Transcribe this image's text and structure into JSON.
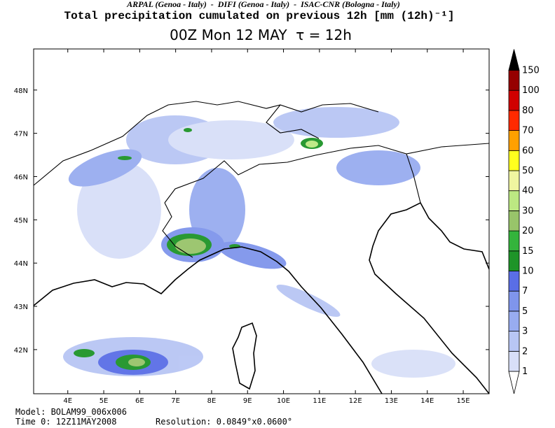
{
  "header": {
    "institutions": "ARPAL (Genoa - Italy)  -  DIFI (Genoa - Italy)  -  ISAC-CNR (Bologna - Italy)",
    "title": "Total precipitation cumulated on previous 12h [mm (12h)⁻¹]",
    "subtitle": "00Z Mon 12 MAY  τ = 12h"
  },
  "map": {
    "lon_lim": [
      3.05,
      15.72
    ],
    "lat_lim": [
      40.98,
      48.95
    ],
    "lon_ticks": [
      {
        "value": 4,
        "label": "4E"
      },
      {
        "value": 5,
        "label": "5E"
      },
      {
        "value": 6,
        "label": "6E"
      },
      {
        "value": 7,
        "label": "7E"
      },
      {
        "value": 8,
        "label": "8E"
      },
      {
        "value": 9,
        "label": "9E"
      },
      {
        "value": 10,
        "label": "10E"
      },
      {
        "value": 11,
        "label": "11E"
      },
      {
        "value": 12,
        "label": "12E"
      },
      {
        "value": 13,
        "label": "13E"
      },
      {
        "value": 14,
        "label": "14E"
      },
      {
        "value": 15,
        "label": "15E"
      }
    ],
    "lat_ticks": [
      {
        "value": 42,
        "label": "42N"
      },
      {
        "value": 43,
        "label": "43N"
      },
      {
        "value": 44,
        "label": "44N"
      },
      {
        "value": 45,
        "label": "45N"
      },
      {
        "value": 46,
        "label": "46N"
      },
      {
        "value": 47,
        "label": "47N"
      },
      {
        "value": 48,
        "label": "48N"
      }
    ]
  },
  "colorbar": {
    "levels": [
      1,
      2,
      3,
      5,
      7,
      10,
      15,
      20,
      30,
      40,
      50,
      60,
      70,
      80,
      100,
      150
    ],
    "colors": [
      "#ffffff",
      "#d8dff8",
      "#b8c6f4",
      "#98acf0",
      "#7f95ec",
      "#5a6ee6",
      "#1e9428",
      "#34b43c",
      "#98c46a",
      "#bce882",
      "#f0f5a0",
      "#ffff1e",
      "#ffa000",
      "#ff2a00",
      "#d00000",
      "#960000",
      "#000000"
    ]
  },
  "footer": {
    "model": "Model: BOLAM99_006x006",
    "time": "Time 0: 12Z11MAY2008",
    "resolution": "Resolution: 0.0849°x0.0600°"
  }
}
